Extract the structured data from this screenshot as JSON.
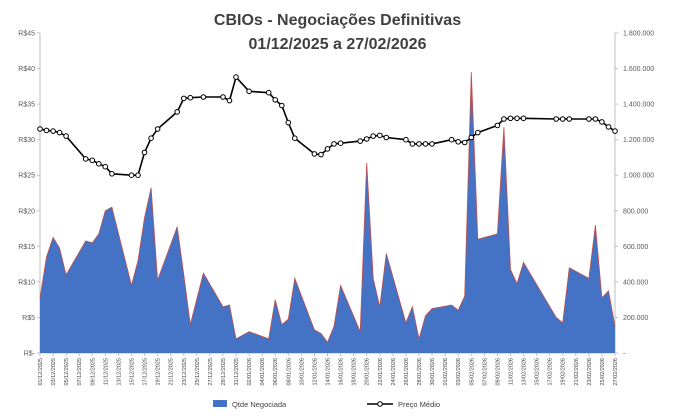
{
  "chart_data": {
    "type": "area",
    "title": "CBIOs - Negociações Definitivas",
    "subtitle": "01/12/2025 a 27/02/2026",
    "left_axis": {
      "ylim": [
        0,
        45
      ],
      "ticks": [
        0,
        5,
        10,
        15,
        20,
        25,
        30,
        35,
        40,
        45
      ],
      "tick_labels": [
        "R$-",
        "R$5",
        "R$10",
        "R$15",
        "R$20",
        "R$25",
        "R$30",
        "R$35",
        "R$40",
        "R$45"
      ]
    },
    "right_axis": {
      "ylim": [
        0,
        1800000
      ],
      "ticks": [
        0,
        200000,
        400000,
        600000,
        800000,
        1000000,
        1200000,
        1400000,
        1600000,
        1800000
      ],
      "tick_labels": [
        "-",
        "200.000",
        "400.000",
        "600.000",
        "800.000",
        "1.000.000",
        "1.200.000",
        "1.400.000",
        "1.600.000",
        "1.800.000"
      ]
    },
    "x_tick_labels": [
      "01/12/2025",
      "03/12/2025",
      "05/12/2025",
      "07/12/2025",
      "09/12/2025",
      "11/12/2025",
      "13/12/2025",
      "15/12/2025",
      "17/12/2025",
      "19/12/2025",
      "21/12/2025",
      "23/12/2025",
      "25/12/2025",
      "27/12/2025",
      "29/12/2025",
      "31/12/2025",
      "02/01/2026",
      "04/01/2026",
      "06/01/2026",
      "08/01/2026",
      "10/01/2026",
      "12/01/2026",
      "14/01/2026",
      "16/01/2026",
      "18/01/2026",
      "20/01/2026",
      "22/01/2026",
      "24/01/2026",
      "26/01/2026",
      "28/01/2026",
      "30/01/2026",
      "01/02/2026",
      "03/02/2026",
      "05/02/2026",
      "07/02/2026",
      "09/02/2026",
      "11/02/2026",
      "13/02/2026",
      "15/02/2026",
      "17/02/2026",
      "19/02/2026",
      "21/02/2026",
      "23/02/2026",
      "25/02/2026",
      "27/02/2026"
    ],
    "series": [
      {
        "name": "Qtde Negociada",
        "type": "area",
        "axis": "right",
        "color": "#4472C4",
        "points": [
          {
            "x": "01/12/2025",
            "y": 310000
          },
          {
            "x": "02/12/2025",
            "y": 540000
          },
          {
            "x": "03/12/2025",
            "y": 650000
          },
          {
            "x": "04/12/2025",
            "y": 590000
          },
          {
            "x": "05/12/2025",
            "y": 440000
          },
          {
            "x": "08/12/2025",
            "y": 630000
          },
          {
            "x": "09/12/2025",
            "y": 620000
          },
          {
            "x": "10/12/2025",
            "y": 670000
          },
          {
            "x": "11/12/2025",
            "y": 800000
          },
          {
            "x": "12/12/2025",
            "y": 820000
          },
          {
            "x": "15/12/2025",
            "y": 380000
          },
          {
            "x": "16/12/2025",
            "y": 520000
          },
          {
            "x": "17/12/2025",
            "y": 760000
          },
          {
            "x": "18/12/2025",
            "y": 930000
          },
          {
            "x": "19/12/2025",
            "y": 410000
          },
          {
            "x": "22/12/2025",
            "y": 710000
          },
          {
            "x": "23/12/2025",
            "y": 440000
          },
          {
            "x": "24/12/2025",
            "y": 160000
          },
          {
            "x": "26/12/2025",
            "y": 450000
          },
          {
            "x": "29/12/2025",
            "y": 260000
          },
          {
            "x": "30/12/2025",
            "y": 270000
          },
          {
            "x": "31/12/2025",
            "y": 80000
          },
          {
            "x": "02/01/2026",
            "y": 120000
          },
          {
            "x": "05/01/2026",
            "y": 80000
          },
          {
            "x": "06/01/2026",
            "y": 300000
          },
          {
            "x": "07/01/2026",
            "y": 160000
          },
          {
            "x": "08/01/2026",
            "y": 190000
          },
          {
            "x": "09/01/2026",
            "y": 420000
          },
          {
            "x": "12/01/2026",
            "y": 130000
          },
          {
            "x": "13/01/2026",
            "y": 110000
          },
          {
            "x": "14/01/2026",
            "y": 60000
          },
          {
            "x": "15/01/2026",
            "y": 150000
          },
          {
            "x": "16/01/2026",
            "y": 380000
          },
          {
            "x": "19/01/2026",
            "y": 120000
          },
          {
            "x": "20/01/2026",
            "y": 1070000
          },
          {
            "x": "21/01/2026",
            "y": 420000
          },
          {
            "x": "22/01/2026",
            "y": 260000
          },
          {
            "x": "23/01/2026",
            "y": 560000
          },
          {
            "x": "26/01/2026",
            "y": 170000
          },
          {
            "x": "27/01/2026",
            "y": 260000
          },
          {
            "x": "28/01/2026",
            "y": 80000
          },
          {
            "x": "29/01/2026",
            "y": 210000
          },
          {
            "x": "30/01/2026",
            "y": 250000
          },
          {
            "x": "02/02/2026",
            "y": 270000
          },
          {
            "x": "03/02/2026",
            "y": 240000
          },
          {
            "x": "04/02/2026",
            "y": 320000
          },
          {
            "x": "05/02/2026",
            "y": 1580000
          },
          {
            "x": "06/02/2026",
            "y": 640000
          },
          {
            "x": "09/02/2026",
            "y": 670000
          },
          {
            "x": "10/02/2026",
            "y": 1270000
          },
          {
            "x": "11/02/2026",
            "y": 470000
          },
          {
            "x": "12/02/2026",
            "y": 390000
          },
          {
            "x": "13/02/2026",
            "y": 510000
          },
          {
            "x": "18/02/2026",
            "y": 200000
          },
          {
            "x": "19/02/2026",
            "y": 170000
          },
          {
            "x": "20/02/2026",
            "y": 480000
          },
          {
            "x": "23/02/2026",
            "y": 420000
          },
          {
            "x": "24/02/2026",
            "y": 720000
          },
          {
            "x": "25/02/2026",
            "y": 310000
          },
          {
            "x": "26/02/2026",
            "y": 350000
          },
          {
            "x": "27/02/2026",
            "y": 150000
          }
        ]
      },
      {
        "name": "Preço Médio",
        "type": "line",
        "axis": "left",
        "color": "#000000",
        "points": [
          {
            "x": "01/12/2025",
            "y": 31.5
          },
          {
            "x": "02/12/2025",
            "y": 31.3
          },
          {
            "x": "03/12/2025",
            "y": 31.2
          },
          {
            "x": "04/12/2025",
            "y": 31.0
          },
          {
            "x": "05/12/2025",
            "y": 30.5
          },
          {
            "x": "08/12/2025",
            "y": 27.3
          },
          {
            "x": "09/12/2025",
            "y": 27.1
          },
          {
            "x": "10/12/2025",
            "y": 26.6
          },
          {
            "x": "11/12/2025",
            "y": 26.2
          },
          {
            "x": "12/12/2025",
            "y": 25.2
          },
          {
            "x": "15/12/2025",
            "y": 25.0
          },
          {
            "x": "16/12/2025",
            "y": 25.0
          },
          {
            "x": "17/12/2025",
            "y": 28.2
          },
          {
            "x": "18/12/2025",
            "y": 30.2
          },
          {
            "x": "19/12/2025",
            "y": 31.5
          },
          {
            "x": "22/12/2025",
            "y": 33.9
          },
          {
            "x": "23/12/2025",
            "y": 35.8
          },
          {
            "x": "24/12/2025",
            "y": 35.9
          },
          {
            "x": "26/12/2025",
            "y": 36.0
          },
          {
            "x": "29/12/2025",
            "y": 36.0
          },
          {
            "x": "30/12/2025",
            "y": 35.5
          },
          {
            "x": "31/12/2025",
            "y": 38.8
          },
          {
            "x": "02/01/2026",
            "y": 36.8
          },
          {
            "x": "05/01/2026",
            "y": 36.6
          },
          {
            "x": "06/01/2026",
            "y": 35.6
          },
          {
            "x": "07/01/2026",
            "y": 34.8
          },
          {
            "x": "08/01/2026",
            "y": 32.4
          },
          {
            "x": "09/01/2026",
            "y": 30.2
          },
          {
            "x": "12/01/2026",
            "y": 28.0
          },
          {
            "x": "13/01/2026",
            "y": 27.9
          },
          {
            "x": "14/01/2026",
            "y": 28.7
          },
          {
            "x": "15/01/2026",
            "y": 29.4
          },
          {
            "x": "16/01/2026",
            "y": 29.5
          },
          {
            "x": "19/01/2026",
            "y": 29.8
          },
          {
            "x": "20/01/2026",
            "y": 30.1
          },
          {
            "x": "21/01/2026",
            "y": 30.5
          },
          {
            "x": "22/01/2026",
            "y": 30.6
          },
          {
            "x": "23/01/2026",
            "y": 30.3
          },
          {
            "x": "26/01/2026",
            "y": 30.0
          },
          {
            "x": "27/01/2026",
            "y": 29.4
          },
          {
            "x": "28/01/2026",
            "y": 29.4
          },
          {
            "x": "29/01/2026",
            "y": 29.4
          },
          {
            "x": "30/01/2026",
            "y": 29.4
          },
          {
            "x": "02/02/2026",
            "y": 30.0
          },
          {
            "x": "03/02/2026",
            "y": 29.7
          },
          {
            "x": "04/02/2026",
            "y": 29.6
          },
          {
            "x": "05/02/2026",
            "y": 30.3
          },
          {
            "x": "06/02/2026",
            "y": 31.0
          },
          {
            "x": "09/02/2026",
            "y": 32.0
          },
          {
            "x": "10/02/2026",
            "y": 32.9
          },
          {
            "x": "11/02/2026",
            "y": 33.0
          },
          {
            "x": "12/02/2026",
            "y": 33.0
          },
          {
            "x": "13/02/2026",
            "y": 33.0
          },
          {
            "x": "18/02/2026",
            "y": 32.9
          },
          {
            "x": "19/02/2026",
            "y": 32.9
          },
          {
            "x": "20/02/2026",
            "y": 32.9
          },
          {
            "x": "23/02/2026",
            "y": 32.9
          },
          {
            "x": "24/02/2026",
            "y": 32.9
          },
          {
            "x": "25/02/2026",
            "y": 32.5
          },
          {
            "x": "26/02/2026",
            "y": 31.8
          },
          {
            "x": "27/02/2026",
            "y": 31.2
          }
        ]
      }
    ],
    "grid": false,
    "legend": {
      "position": "bottom",
      "entries": [
        "Qtde Negociada",
        "Preço Médio"
      ]
    }
  }
}
